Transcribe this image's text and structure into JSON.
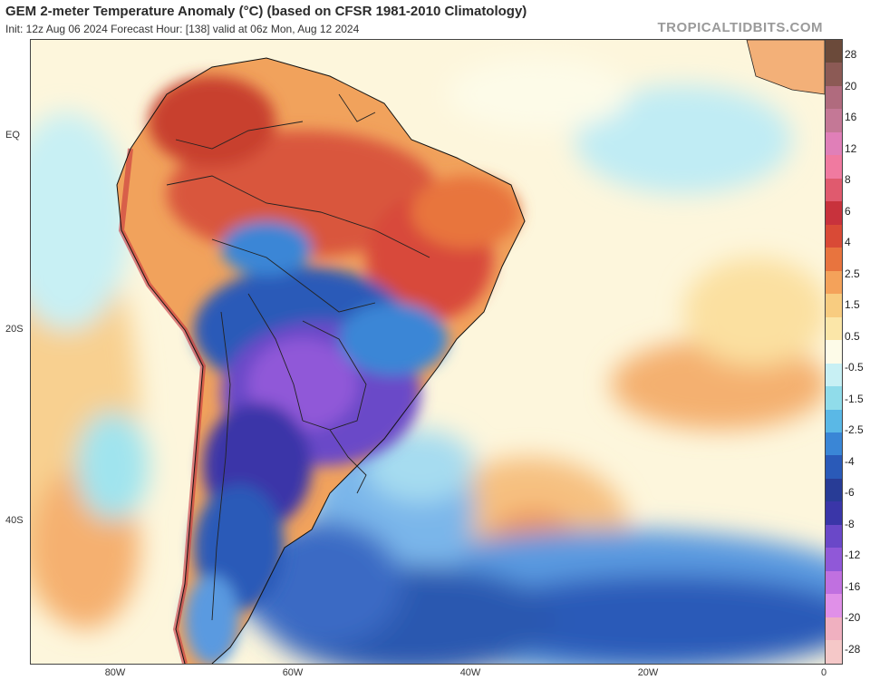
{
  "header": {
    "title": "GEM 2-meter Temperature Anomaly (°C) (based on CFSR 1981-2010 Climatology)",
    "subtitle": "Init: 12z Aug 06 2024   Forecast Hour: [138]   valid at 06z Mon, Aug 12 2024",
    "brand": "TROPICALTIDBITS.COM"
  },
  "axes": {
    "lat_labels": [
      "EQ",
      "20S",
      "40S"
    ],
    "lon_labels": [
      "80W",
      "60W",
      "40W",
      "20W",
      "0"
    ]
  },
  "colorbar": {
    "labels": [
      "28",
      "20",
      "16",
      "12",
      "8",
      "6",
      "4",
      "2.5",
      "1.5",
      "0.5",
      "-0.5",
      "-1.5",
      "-2.5",
      "-4",
      "-6",
      "-8",
      "-12",
      "-16",
      "-20",
      "-28"
    ],
    "colors": [
      "#6b4a3a",
      "#8c5a55",
      "#b06b7e",
      "#c47896",
      "#e07fb8",
      "#f07aa0",
      "#e05a6e",
      "#c8323c",
      "#d94a36",
      "#e8743e",
      "#f4a25a",
      "#f8cc80",
      "#fbe6a8",
      "#fdfbe8",
      "#c8f0f4",
      "#90dcea",
      "#5ab8e6",
      "#3a86d6",
      "#2a5ab8",
      "#283c96",
      "#3a36a8",
      "#6a48c8",
      "#9058d8",
      "#c070e0",
      "#e090e8",
      "#f0b0c0",
      "#f5c8c8"
    ]
  }
}
